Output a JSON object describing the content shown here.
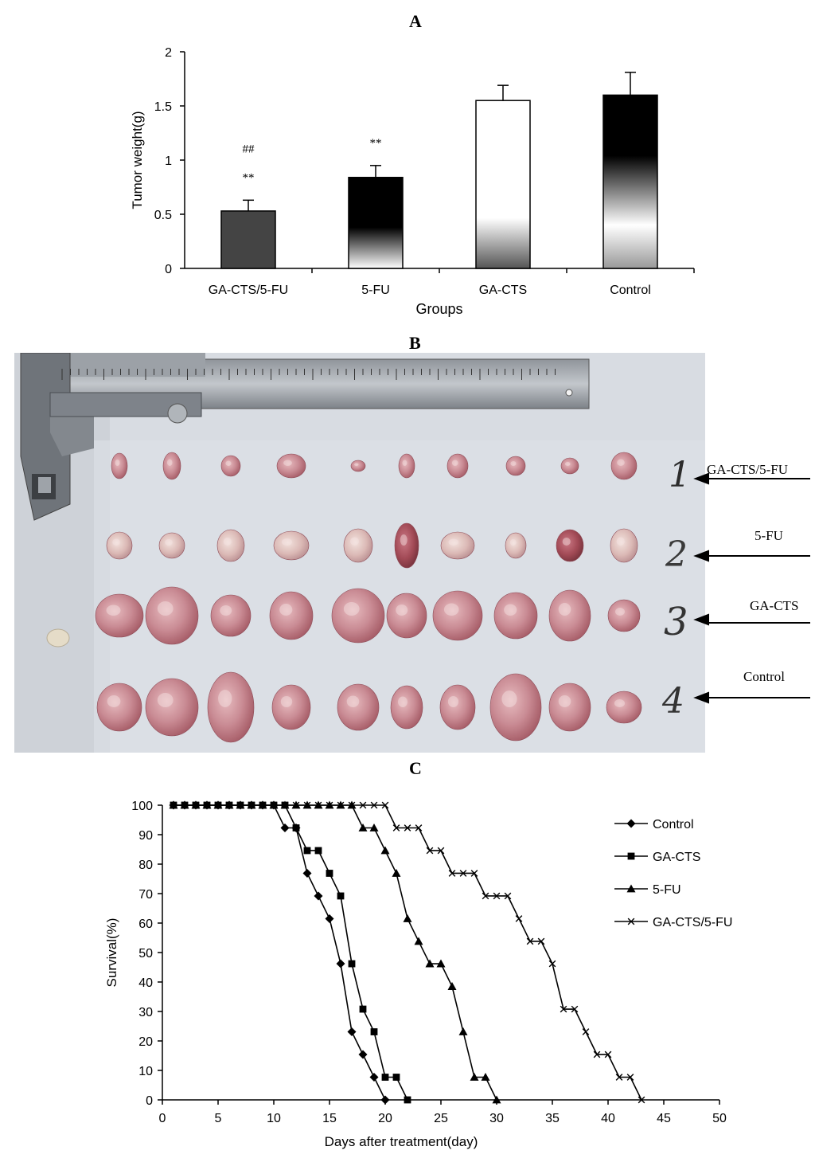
{
  "panel_a": {
    "letter": "A",
    "chart_data": {
      "type": "bar",
      "categories": [
        "GA-CTS/5-FU",
        "5-FU",
        "GA-CTS",
        "Control"
      ],
      "values": [
        0.53,
        0.84,
        1.55,
        1.6
      ],
      "errors": [
        0.1,
        0.11,
        0.14,
        0.21
      ],
      "xlabel": "Groups",
      "ylabel": "Tumor weight(g)",
      "ylim": [
        0,
        2
      ],
      "yticks": [
        "0",
        "0.5",
        "1",
        "1.5",
        "2"
      ],
      "annotations": [
        {
          "category": "GA-CTS/5-FU",
          "marks": [
            "##",
            "**"
          ]
        },
        {
          "category": "5-FU",
          "marks": [
            "**"
          ]
        }
      ]
    }
  },
  "panel_b": {
    "letter": "B",
    "row_labels": [
      "GA-CTS/5-FU",
      "5-FU",
      "GA-CTS",
      "Control"
    ],
    "handwritten_row_numbers": [
      "1",
      "2",
      "3",
      "4"
    ]
  },
  "panel_c": {
    "letter": "C",
    "chart_data": {
      "type": "line",
      "xlabel": "Days after treatment(day)",
      "ylabel": "Survival(%)",
      "xlim": [
        0,
        50
      ],
      "ylim": [
        0,
        100
      ],
      "xticks": [
        "0",
        "5",
        "10",
        "15",
        "20",
        "25",
        "30",
        "35",
        "40",
        "45",
        "50"
      ],
      "yticks": [
        "0",
        "10",
        "20",
        "30",
        "40",
        "50",
        "60",
        "70",
        "80",
        "90",
        "100"
      ],
      "legend_position": "right",
      "series": [
        {
          "name": "Control",
          "marker": "diamond",
          "x": [
            1,
            2,
            3,
            4,
            5,
            6,
            7,
            8,
            9,
            10,
            11,
            12,
            13,
            14,
            15,
            16,
            17,
            18,
            19,
            20
          ],
          "y": [
            100,
            100,
            100,
            100,
            100,
            100,
            100,
            100,
            100,
            100,
            92.3,
            92.3,
            76.9,
            69.2,
            61.5,
            46.2,
            23.1,
            15.4,
            7.7,
            0
          ]
        },
        {
          "name": "GA-CTS",
          "marker": "square",
          "x": [
            1,
            2,
            3,
            4,
            5,
            6,
            7,
            8,
            9,
            10,
            11,
            12,
            13,
            14,
            15,
            16,
            17,
            18,
            19,
            20,
            21,
            22
          ],
          "y": [
            100,
            100,
            100,
            100,
            100,
            100,
            100,
            100,
            100,
            100,
            100,
            92.3,
            84.6,
            84.6,
            76.9,
            69.2,
            46.2,
            30.8,
            23.1,
            7.7,
            7.7,
            0
          ]
        },
        {
          "name": "5-FU",
          "marker": "triangle",
          "x": [
            1,
            2,
            3,
            4,
            5,
            6,
            7,
            8,
            9,
            10,
            11,
            12,
            13,
            14,
            15,
            16,
            17,
            18,
            19,
            20,
            21,
            22,
            23,
            24,
            25,
            26,
            27,
            28,
            29,
            30
          ],
          "y": [
            100,
            100,
            100,
            100,
            100,
            100,
            100,
            100,
            100,
            100,
            100,
            100,
            100,
            100,
            100,
            100,
            100,
            92.3,
            92.3,
            84.6,
            76.9,
            61.5,
            53.8,
            46.2,
            46.2,
            38.5,
            23.1,
            7.7,
            7.7,
            0
          ]
        },
        {
          "name": "GA-CTS/5-FU",
          "marker": "x",
          "x": [
            1,
            2,
            3,
            4,
            5,
            6,
            7,
            8,
            9,
            10,
            11,
            12,
            13,
            14,
            15,
            16,
            17,
            18,
            19,
            20,
            21,
            22,
            23,
            24,
            25,
            26,
            27,
            28,
            29,
            30,
            31,
            32,
            33,
            34,
            35,
            36,
            37,
            38,
            39,
            40,
            41,
            42,
            43
          ],
          "y": [
            100,
            100,
            100,
            100,
            100,
            100,
            100,
            100,
            100,
            100,
            100,
            100,
            100,
            100,
            100,
            100,
            100,
            100,
            100,
            100,
            92.3,
            92.3,
            92.3,
            84.6,
            84.6,
            76.9,
            76.9,
            76.9,
            69.2,
            69.2,
            69.2,
            61.5,
            53.8,
            53.8,
            46.2,
            30.8,
            30.8,
            23.1,
            15.4,
            15.4,
            7.7,
            7.7,
            0
          ]
        }
      ]
    }
  }
}
